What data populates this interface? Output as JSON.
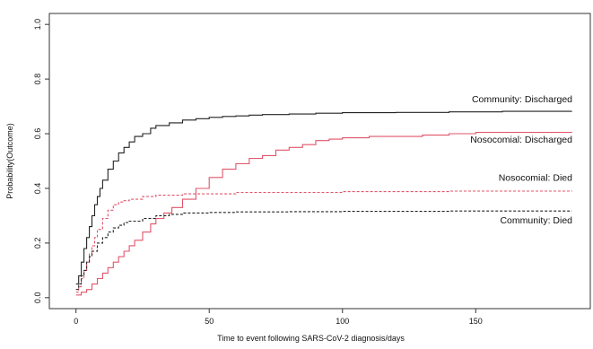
{
  "chart_data": {
    "type": "line",
    "xlabel": "Time to event following SARS-CoV-2 diagnosis/days",
    "ylabel": "Probability(Outcome)",
    "xlim": [
      -10,
      193
    ],
    "ylim": [
      -0.04,
      1.04
    ],
    "x_ticks": [
      0,
      50,
      100,
      150
    ],
    "y_ticks": [
      0.0,
      0.2,
      0.4,
      0.6,
      0.8,
      1.0
    ],
    "y_tick_labels": [
      "0.0",
      "0.2",
      "0.4",
      "0.6",
      "0.8",
      "1.0"
    ],
    "grid": false,
    "legend": "none",
    "colors": {
      "community": "#222222",
      "nosocomial": "#e0556a"
    },
    "series": [
      {
        "name": "Community: Discharged",
        "color": "#222222",
        "dash": "solid",
        "step": true,
        "x": [
          0,
          1,
          2,
          3,
          4,
          5,
          6,
          7,
          8,
          9,
          10,
          12,
          14,
          16,
          18,
          20,
          22,
          25,
          28,
          30,
          35,
          40,
          45,
          50,
          55,
          60,
          65,
          70,
          80,
          90,
          100,
          120,
          140,
          160,
          186
        ],
        "y": [
          0.05,
          0.08,
          0.13,
          0.18,
          0.22,
          0.26,
          0.3,
          0.34,
          0.37,
          0.4,
          0.43,
          0.47,
          0.5,
          0.53,
          0.55,
          0.57,
          0.59,
          0.6,
          0.62,
          0.63,
          0.64,
          0.65,
          0.655,
          0.66,
          0.663,
          0.665,
          0.668,
          0.67,
          0.672,
          0.675,
          0.677,
          0.678,
          0.68,
          0.682,
          0.683
        ]
      },
      {
        "name": "Nosocomial: Discharged",
        "color": "#e0556a",
        "dash": "solid",
        "step": true,
        "x": [
          0,
          2,
          4,
          6,
          8,
          10,
          12,
          14,
          16,
          18,
          20,
          22,
          25,
          28,
          30,
          33,
          36,
          40,
          45,
          50,
          55,
          60,
          65,
          70,
          75,
          80,
          85,
          90,
          95,
          100,
          110,
          120,
          130,
          140,
          150,
          160,
          186
        ],
        "y": [
          0.01,
          0.02,
          0.03,
          0.05,
          0.07,
          0.09,
          0.11,
          0.13,
          0.15,
          0.17,
          0.19,
          0.21,
          0.24,
          0.27,
          0.29,
          0.31,
          0.33,
          0.36,
          0.4,
          0.44,
          0.47,
          0.49,
          0.51,
          0.52,
          0.54,
          0.55,
          0.56,
          0.575,
          0.58,
          0.585,
          0.59,
          0.59,
          0.595,
          0.6,
          0.605,
          0.605,
          0.607
        ]
      },
      {
        "name": "Nosocomial: Died",
        "color": "#e0556a",
        "dash": "dashed",
        "step": true,
        "x": [
          0,
          1,
          2,
          3,
          4,
          5,
          6,
          7,
          8,
          10,
          12,
          14,
          16,
          18,
          20,
          25,
          30,
          40,
          60,
          100,
          140,
          186
        ],
        "y": [
          0.02,
          0.04,
          0.07,
          0.1,
          0.13,
          0.16,
          0.19,
          0.22,
          0.25,
          0.29,
          0.32,
          0.34,
          0.35,
          0.355,
          0.36,
          0.37,
          0.375,
          0.38,
          0.385,
          0.388,
          0.39,
          0.392
        ]
      },
      {
        "name": "Community: Died",
        "color": "#222222",
        "dash": "dashed",
        "step": true,
        "x": [
          0,
          1,
          2,
          3,
          4,
          5,
          6,
          8,
          10,
          12,
          14,
          16,
          18,
          20,
          25,
          30,
          35,
          40,
          50,
          60,
          80,
          100,
          140,
          186
        ],
        "y": [
          0.03,
          0.05,
          0.08,
          0.1,
          0.13,
          0.15,
          0.17,
          0.2,
          0.22,
          0.24,
          0.255,
          0.265,
          0.275,
          0.28,
          0.29,
          0.3,
          0.305,
          0.31,
          0.312,
          0.314,
          0.315,
          0.316,
          0.317,
          0.318
        ]
      }
    ],
    "annotations": [
      {
        "text": "Community: Discharged",
        "series": "Community: Discharged"
      },
      {
        "text": "Nosocomial: Discharged",
        "series": "Nosocomial: Discharged"
      },
      {
        "text": "Nosocomial: Died",
        "series": "Nosocomial: Died"
      },
      {
        "text": "Community: Died",
        "series": "Community: Died"
      }
    ]
  }
}
